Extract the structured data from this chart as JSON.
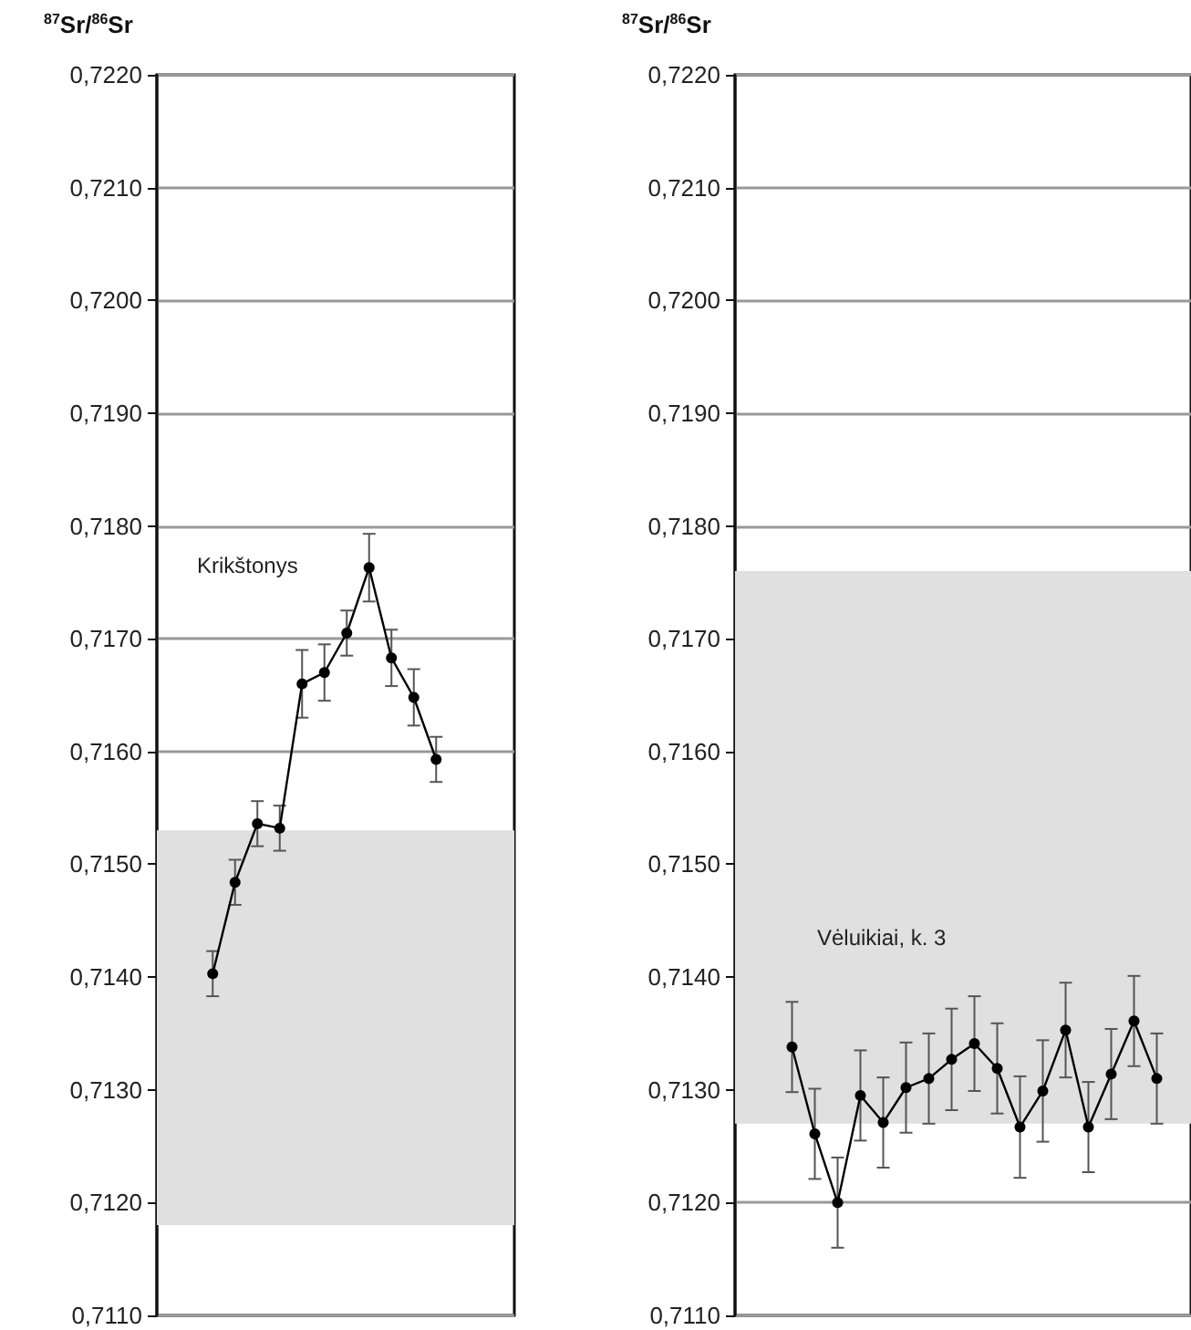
{
  "chart_data": [
    {
      "type": "line",
      "ylabel": "$^{87}$Sr/$^{86}$Sr",
      "annotations": [
        "Krikštonys"
      ],
      "categories": [
        null,
        null,
        null,
        null,
        null,
        null,
        null,
        null,
        null,
        null,
        null,
        null,
        null,
        null,
        null,
        null
      ],
      "series": [
        {
          "color": "#000000",
          "values": [
            null,
            null,
            0.71403,
            0.71484,
            0.71536,
            0.71532,
            0.7166,
            0.7167,
            0.71705,
            0.71763,
            0.71683,
            0.71648,
            0.71593,
            null,
            null,
            null
          ],
          "errors": [
            null,
            null,
            0.0002,
            0.0002,
            0.0002,
            0.0002,
            0.0003,
            0.00025,
            0.0002,
            0.0003,
            0.00025,
            0.00025,
            0.0002,
            null,
            null,
            null
          ]
        }
      ],
      "ylim": [
        0.711,
        0.722
      ],
      "yticks": [
        {
          "value": 0.711,
          "label": "0,7110"
        },
        {
          "value": 0.712,
          "label": "0,7120"
        },
        {
          "value": 0.713,
          "label": "0,7130"
        },
        {
          "value": 0.714,
          "label": "0,7140"
        },
        {
          "value": 0.715,
          "label": "0,7150"
        },
        {
          "value": 0.716,
          "label": "0,7160"
        },
        {
          "value": 0.717,
          "label": "0,7170"
        },
        {
          "value": 0.718,
          "label": "0,7180"
        },
        {
          "value": 0.719,
          "label": "0,7190"
        },
        {
          "value": 0.72,
          "label": "0,7200"
        },
        {
          "value": 0.721,
          "label": "0,7210"
        },
        {
          "value": 0.722,
          "label": "0,7220"
        }
      ],
      "bands": [
        {
          "axis": "y",
          "from": 0.7118,
          "to": 0.7153,
          "color": "#e0e0e0"
        }
      ],
      "grid": "y",
      "tick_labels": "y",
      "marker": "circle",
      "line_style": "solid"
    },
    {
      "type": "line",
      "ylabel": "$^{87}$Sr/$^{86}$Sr",
      "annotations": [
        "Vėluikiai, k. 3"
      ],
      "categories": [
        null,
        null,
        null,
        null,
        null,
        null,
        null,
        null,
        null,
        null,
        null,
        null,
        null,
        null,
        null,
        null,
        null,
        null,
        null,
        null
      ],
      "series": [
        {
          "color": "#000000",
          "values": [
            null,
            null,
            0.71338,
            0.71261,
            0.712,
            0.71295,
            0.71271,
            0.71302,
            0.7131,
            0.71327,
            0.71341,
            0.71319,
            0.71267,
            0.71299,
            0.71353,
            0.71267,
            0.71314,
            0.71361,
            0.7131,
            null
          ],
          "errors": [
            null,
            null,
            0.0004,
            0.0004,
            0.0004,
            0.0004,
            0.0004,
            0.0004,
            0.0004,
            0.00045,
            0.00042,
            0.0004,
            0.00045,
            0.00045,
            0.00042,
            0.0004,
            0.0004,
            0.0004,
            0.0004,
            null
          ]
        }
      ],
      "ylim": [
        0.711,
        0.722
      ],
      "yticks": [
        {
          "value": 0.711,
          "label": "0,7110"
        },
        {
          "value": 0.712,
          "label": "0,7120"
        },
        {
          "value": 0.713,
          "label": "0,7130"
        },
        {
          "value": 0.714,
          "label": "0,7140"
        },
        {
          "value": 0.715,
          "label": "0,7150"
        },
        {
          "value": 0.716,
          "label": "0,7160"
        },
        {
          "value": 0.717,
          "label": "0,7170"
        },
        {
          "value": 0.718,
          "label": "0,7180"
        },
        {
          "value": 0.719,
          "label": "0,7190"
        },
        {
          "value": 0.72,
          "label": "0,7200"
        },
        {
          "value": 0.721,
          "label": "0,7210"
        },
        {
          "value": 0.722,
          "label": "0,7220"
        }
      ],
      "bands": [
        {
          "axis": "y",
          "from": 0.7127,
          "to": 0.7176,
          "color": "#e0e0e0"
        }
      ],
      "grid": "y",
      "tick_labels": "y",
      "marker": "circle",
      "line_style": "solid"
    }
  ]
}
